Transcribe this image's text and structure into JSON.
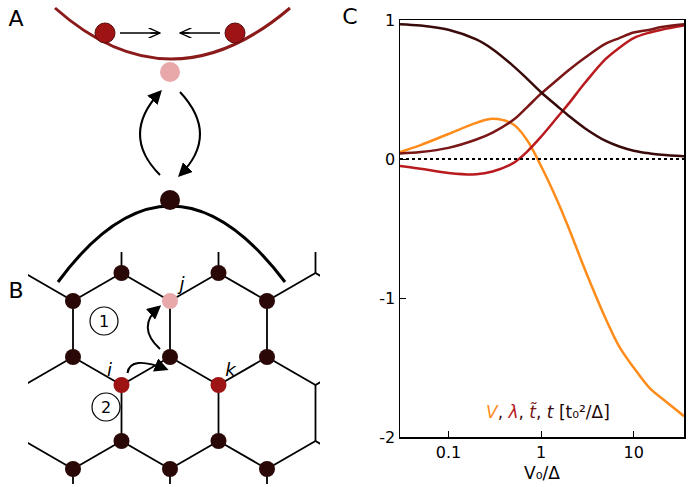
{
  "panel_labels": [
    "A",
    "B",
    "C"
  ],
  "diagram": {
    "site_labels": [
      "i",
      "j",
      "k"
    ],
    "step_labels": [
      "1",
      "2"
    ]
  },
  "chart_data": {
    "type": "line",
    "x_label": "V₀/Δ",
    "unit_label": "[t₀²/Δ]",
    "name_separator": ", ",
    "log": "x",
    "xlim": [
      0.03,
      35
    ],
    "ylim": [
      -2,
      1
    ],
    "xticks": [
      0.1,
      1,
      10
    ],
    "yticks": [
      -2,
      -1,
      0,
      1
    ],
    "reference_line": {
      "y": 0,
      "line_style": "dotted"
    },
    "x": [
      0.03,
      0.05,
      0.1,
      0.2,
      0.3,
      0.5,
      0.7,
      1,
      1.5,
      2,
      3,
      5,
      7,
      10,
      15,
      20,
      35
    ],
    "series": [
      {
        "name": "V",
        "color": "#ff8c1a",
        "values": [
          0.05,
          0.1,
          0.18,
          0.26,
          0.29,
          0.25,
          0.14,
          -0.05,
          -0.3,
          -0.5,
          -0.8,
          -1.15,
          -1.35,
          -1.5,
          -1.65,
          -1.72,
          -1.85
        ]
      },
      {
        "name": "λ",
        "color": "#b81a1e",
        "values": [
          -0.05,
          -0.07,
          -0.1,
          -0.11,
          -0.09,
          -0.03,
          0.05,
          0.16,
          0.3,
          0.4,
          0.55,
          0.72,
          0.8,
          0.87,
          0.91,
          0.93,
          0.96
        ]
      },
      {
        "name": "t̃",
        "color": "#7a1616",
        "values": [
          0.04,
          0.05,
          0.08,
          0.14,
          0.19,
          0.28,
          0.37,
          0.47,
          0.57,
          0.64,
          0.73,
          0.83,
          0.87,
          0.91,
          0.93,
          0.95,
          0.97
        ]
      },
      {
        "name": "t",
        "color": "#3a0a0a",
        "values": [
          0.97,
          0.96,
          0.93,
          0.86,
          0.79,
          0.67,
          0.58,
          0.48,
          0.38,
          0.31,
          0.22,
          0.13,
          0.09,
          0.06,
          0.04,
          0.03,
          0.02
        ]
      }
    ]
  }
}
